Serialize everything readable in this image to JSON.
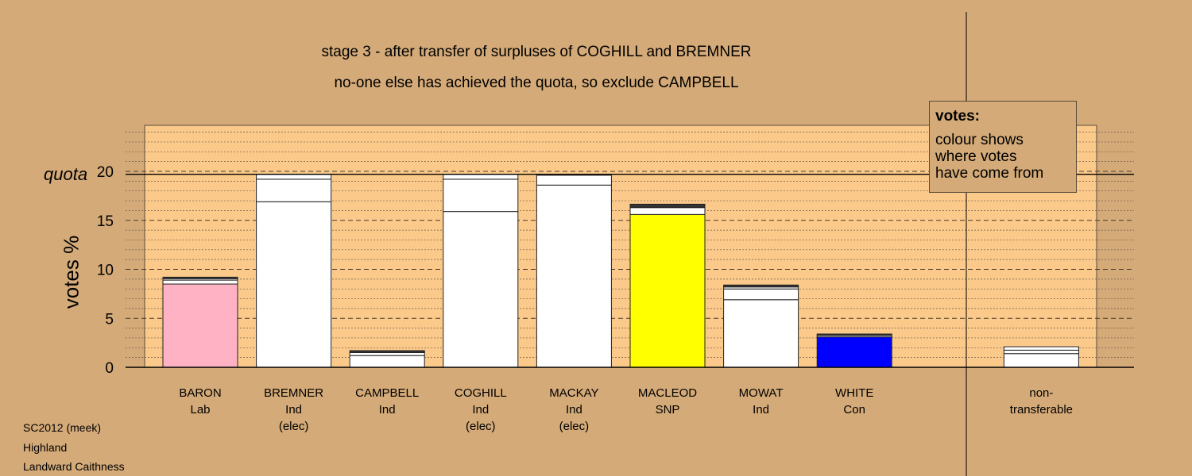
{
  "title_lines": [
    "stage 3 - after transfer of surpluses of COGHILL and BREMNER",
    "no-one else has achieved the quota, so exclude CAMPBELL"
  ],
  "legend": {
    "title": "votes:",
    "lines": [
      "colour shows",
      "where votes",
      "have come from"
    ]
  },
  "footer": [
    "SC2012 (meek)",
    "Highland",
    "Landward Caithness"
  ],
  "chart_data": {
    "type": "bar",
    "stacked": true,
    "title": "stage 3 - after transfer of surpluses of COGHILL and BREMNER",
    "ylabel": "votes %",
    "ylim": [
      0,
      25
    ],
    "yticks": [
      0,
      5,
      10,
      15,
      20
    ],
    "quota": {
      "label": "quota",
      "value": 19.7
    },
    "grid": true,
    "colors": {
      "background": "#d4aa78",
      "plot_area": "#fbc98a",
      "Lab": "#ffb2c4",
      "SNP": "#ffff00",
      "Con": "#0000ff",
      "transfer": "#ffffff"
    },
    "categories": [
      {
        "label": [
          "BARON",
          "Lab"
        ],
        "segments": [
          {
            "value": 8.5,
            "color": "#ffb2c4"
          },
          {
            "value": 0.4,
            "color": "#ffffff"
          },
          {
            "value": 0.15,
            "color": "#ffffff"
          },
          {
            "value": 0.15,
            "color": "#333333"
          }
        ]
      },
      {
        "label": [
          "BREMNER",
          "Ind",
          "(elec)"
        ],
        "segments": [
          {
            "value": 16.9,
            "color": "#ffffff"
          },
          {
            "value": 2.3,
            "color": "#ffffff"
          },
          {
            "value": 0.5,
            "color": "#ffffff"
          }
        ]
      },
      {
        "label": [
          "CAMPBELL",
          "Ind"
        ],
        "segments": [
          {
            "value": 1.2,
            "color": "#ffffff"
          },
          {
            "value": 0.3,
            "color": "#ffffff"
          },
          {
            "value": 0.2,
            "color": "#333333"
          }
        ]
      },
      {
        "label": [
          "COGHILL",
          "Ind",
          "(elec)"
        ],
        "segments": [
          {
            "value": 15.9,
            "color": "#ffffff"
          },
          {
            "value": 3.3,
            "color": "#ffffff"
          },
          {
            "value": 0.5,
            "color": "#ffffff"
          }
        ]
      },
      {
        "label": [
          "MACKAY",
          "Ind",
          "(elec)"
        ],
        "segments": [
          {
            "value": 18.6,
            "color": "#ffffff"
          },
          {
            "value": 1.0,
            "color": "#ffffff"
          }
        ]
      },
      {
        "label": [
          "MACLEOD",
          "SNP"
        ],
        "segments": [
          {
            "value": 15.6,
            "color": "#ffff00"
          },
          {
            "value": 0.7,
            "color": "#ffffff"
          },
          {
            "value": 0.35,
            "color": "#333333"
          }
        ]
      },
      {
        "label": [
          "MOWAT",
          "Ind"
        ],
        "segments": [
          {
            "value": 6.9,
            "color": "#ffffff"
          },
          {
            "value": 1.1,
            "color": "#ffffff"
          },
          {
            "value": 0.2,
            "color": "#ffffff"
          },
          {
            "value": 0.2,
            "color": "#333333"
          }
        ]
      },
      {
        "label": [
          "WHITE",
          "Con"
        ],
        "segments": [
          {
            "value": 3.1,
            "color": "#0000ff"
          },
          {
            "value": 0.15,
            "color": "#ffffff"
          },
          {
            "value": 0.15,
            "color": "#333333"
          }
        ]
      },
      {
        "label": [
          ""
        ],
        "segments": []
      },
      {
        "label": [
          "non-",
          "transferable"
        ],
        "segments": [
          {
            "value": 1.4,
            "color": "#ffffff"
          },
          {
            "value": 0.35,
            "color": "#ffffff"
          },
          {
            "value": 0.35,
            "color": "#ffffff"
          }
        ]
      }
    ]
  }
}
